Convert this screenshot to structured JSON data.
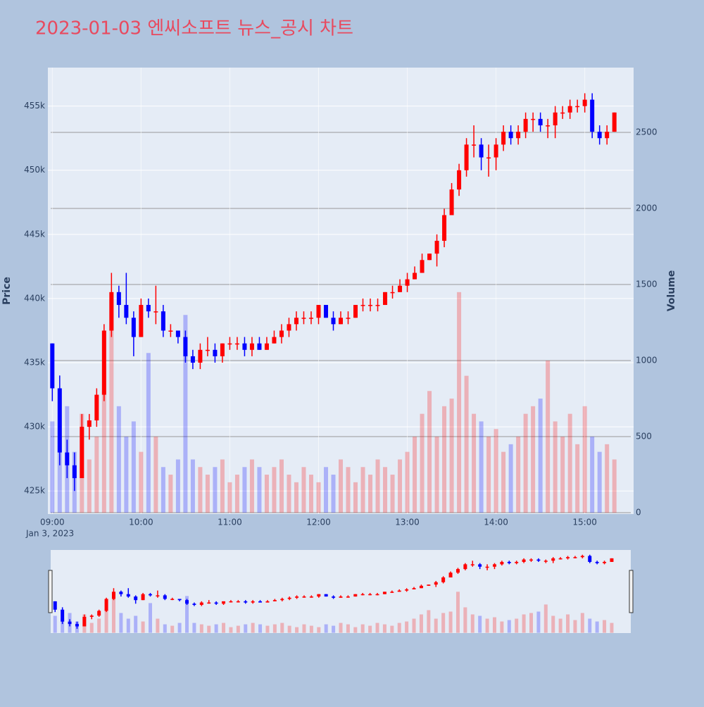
{
  "chart_data": {
    "type": "candlestick",
    "title": "2023-01-03 엔씨소프트 뉴스_공시 차트",
    "y_label": "Price",
    "y2_label": "Volume",
    "x_sub_label": "Jan 3, 2023",
    "increasing_color": "#ff0000",
    "decreasing_color": "#0000ff",
    "x": [
      "09:00",
      "09:05",
      "09:10",
      "09:15",
      "09:20",
      "09:25",
      "09:30",
      "09:35",
      "09:40",
      "09:45",
      "09:50",
      "09:55",
      "10:00",
      "10:05",
      "10:10",
      "10:15",
      "10:20",
      "10:25",
      "10:30",
      "10:35",
      "10:40",
      "10:45",
      "10:50",
      "10:55",
      "11:00",
      "11:05",
      "11:10",
      "11:15",
      "11:20",
      "11:25",
      "11:30",
      "11:35",
      "11:40",
      "11:45",
      "11:50",
      "11:55",
      "12:00",
      "12:05",
      "12:10",
      "12:15",
      "12:20",
      "12:25",
      "12:30",
      "12:35",
      "12:40",
      "12:45",
      "12:50",
      "12:55",
      "13:00",
      "13:05",
      "13:10",
      "13:15",
      "13:20",
      "13:25",
      "13:30",
      "13:35",
      "13:40",
      "13:45",
      "13:50",
      "13:55",
      "14:00",
      "14:05",
      "14:10",
      "14:15",
      "14:20",
      "14:25",
      "14:30",
      "14:35",
      "14:40",
      "14:45",
      "14:50",
      "14:55",
      "15:00",
      "15:05",
      "15:10",
      "15:15",
      "15:20"
    ],
    "open": [
      436500,
      433000,
      428000,
      427000,
      426000,
      430000,
      430500,
      432500,
      437500,
      440500,
      439500,
      438500,
      437000,
      439500,
      439000,
      439000,
      437500,
      437500,
      437000,
      435500,
      435000,
      436000,
      436000,
      435500,
      436500,
      436500,
      436500,
      436000,
      436500,
      436000,
      436500,
      437000,
      437500,
      438000,
      438500,
      438500,
      438500,
      439500,
      438500,
      438000,
      438500,
      438500,
      439500,
      439500,
      439500,
      439500,
      440500,
      440500,
      441000,
      441500,
      442000,
      443000,
      443500,
      444500,
      446500,
      448500,
      450000,
      452000,
      452000,
      451000,
      451000,
      452000,
      453000,
      452500,
      453000,
      454000,
      454000,
      453500,
      453500,
      454500,
      454500,
      455000,
      455000,
      455500,
      453000,
      452500,
      453000
    ],
    "high": [
      436500,
      434000,
      429000,
      428000,
      431000,
      431000,
      433000,
      438000,
      442000,
      441000,
      442000,
      439000,
      440000,
      440000,
      441000,
      439500,
      438000,
      437500,
      437500,
      436000,
      436500,
      437000,
      436500,
      436500,
      437000,
      437000,
      437000,
      437000,
      437000,
      437000,
      437500,
      438000,
      438500,
      439000,
      439000,
      439000,
      439500,
      439500,
      439000,
      439000,
      439000,
      439500,
      440000,
      440000,
      440000,
      440500,
      441000,
      441500,
      442000,
      442500,
      443500,
      443500,
      445000,
      447000,
      449000,
      450500,
      452500,
      453500,
      452500,
      452000,
      452500,
      453500,
      453500,
      453500,
      454500,
      454500,
      454500,
      454000,
      455000,
      455000,
      455500,
      455500,
      456000,
      456000,
      453500,
      453500,
      454500
    ],
    "low": [
      432000,
      427000,
      426000,
      425000,
      426000,
      429000,
      430000,
      432000,
      437000,
      438500,
      438000,
      435500,
      437000,
      438500,
      438000,
      437000,
      437000,
      436500,
      435000,
      434500,
      434500,
      435500,
      435000,
      435000,
      436000,
      436000,
      435500,
      435500,
      436000,
      436000,
      436500,
      436500,
      437000,
      437500,
      438000,
      438000,
      438000,
      438500,
      437500,
      438000,
      438000,
      438500,
      439000,
      439000,
      439000,
      439500,
      440000,
      440500,
      440500,
      441500,
      442000,
      443000,
      442500,
      444000,
      446500,
      448000,
      449500,
      451000,
      450000,
      449500,
      450000,
      451500,
      452000,
      452000,
      452500,
      453000,
      453000,
      452500,
      452500,
      454000,
      454000,
      454500,
      454500,
      452500,
      452000,
      452000,
      453000
    ],
    "close": [
      433000,
      428000,
      427000,
      426000,
      430000,
      430500,
      432500,
      437500,
      440500,
      439500,
      438500,
      437000,
      439500,
      439000,
      439000,
      437500,
      437500,
      437000,
      435500,
      435000,
      436000,
      436000,
      435500,
      436500,
      436500,
      436500,
      436000,
      436500,
      436000,
      436500,
      437000,
      437500,
      438000,
      438500,
      438500,
      438500,
      439500,
      438500,
      438000,
      438500,
      438500,
      439500,
      439500,
      439500,
      439500,
      440500,
      440500,
      441000,
      441500,
      442000,
      443000,
      443500,
      444500,
      446500,
      448500,
      450000,
      452000,
      452000,
      451000,
      451000,
      452000,
      453000,
      452500,
      453000,
      454000,
      454000,
      453500,
      453500,
      454500,
      454500,
      455000,
      455000,
      455500,
      453000,
      452500,
      453000,
      454500
    ],
    "volume": [
      600,
      500,
      700,
      400,
      650,
      350,
      500,
      800,
      1400,
      700,
      500,
      600,
      400,
      1050,
      500,
      300,
      250,
      350,
      1300,
      350,
      300,
      250,
      300,
      350,
      200,
      250,
      300,
      350,
      300,
      250,
      300,
      350,
      250,
      200,
      300,
      250,
      200,
      300,
      250,
      350,
      300,
      200,
      300,
      250,
      350,
      300,
      250,
      350,
      400,
      500,
      650,
      800,
      500,
      700,
      750,
      1450,
      900,
      650,
      600,
      500,
      550,
      400,
      450,
      500,
      650,
      700,
      750,
      1000,
      600,
      500,
      650,
      450,
      700,
      500,
      400,
      450,
      350
    ],
    "xlim": [
      "08:57",
      "15:33"
    ],
    "xticks": [
      "09:00",
      "10:00",
      "11:00",
      "12:00",
      "13:00",
      "14:00",
      "15:00"
    ],
    "ylim": [
      423200,
      458000
    ],
    "yticks": [
      {
        "value": 425000,
        "label": "425k"
      },
      {
        "value": 430000,
        "label": "430k"
      },
      {
        "value": 435000,
        "label": "435k"
      },
      {
        "value": 440000,
        "label": "440k"
      },
      {
        "value": 445000,
        "label": "445k"
      },
      {
        "value": 450000,
        "label": "450k"
      },
      {
        "value": 455000,
        "label": "455k"
      }
    ],
    "y2lim": [
      -9,
      2926
    ],
    "y2ticks": [
      0,
      500,
      1000,
      1500,
      2000,
      2500
    ],
    "grid": true,
    "rangeslider": true
  }
}
